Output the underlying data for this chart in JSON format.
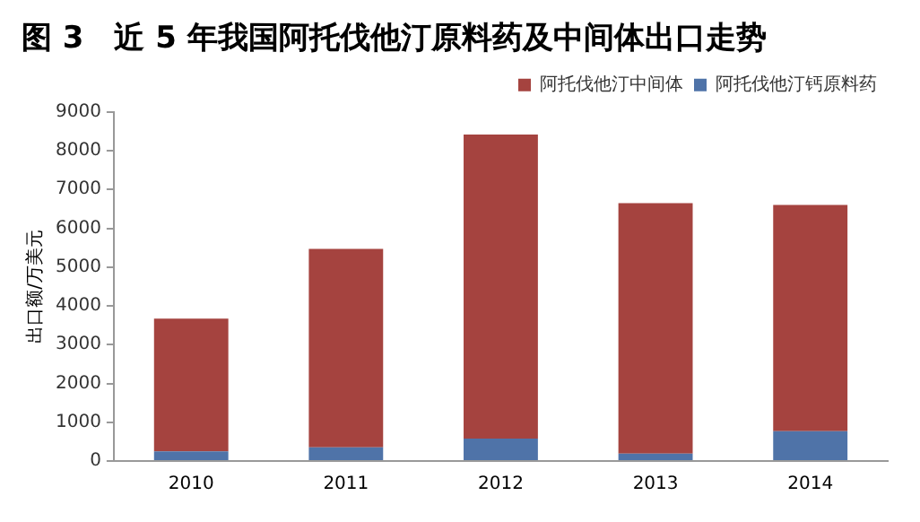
{
  "chart_data": {
    "type": "bar",
    "title": "图 3　近 5 年我国阿托伐他汀原料药及中间体出口走势",
    "ylabel": "出口额/万美元",
    "categories": [
      "2010",
      "2011",
      "2012",
      "2013",
      "2014"
    ],
    "stacked": true,
    "series": [
      {
        "name": "阿托伐他汀钙原料药",
        "color": "#4f73a8",
        "values": [
          250,
          350,
          580,
          190,
          770
        ]
      },
      {
        "name": "阿托伐他汀中间体",
        "color": "#a5433f",
        "values": [
          3420,
          5120,
          7840,
          6460,
          5830
        ]
      }
    ],
    "ylim": [
      0,
      9000
    ],
    "yticks": [
      0,
      1000,
      2000,
      3000,
      4000,
      5000,
      6000,
      7000,
      8000,
      9000
    ],
    "grid": false,
    "legend": "top right"
  }
}
